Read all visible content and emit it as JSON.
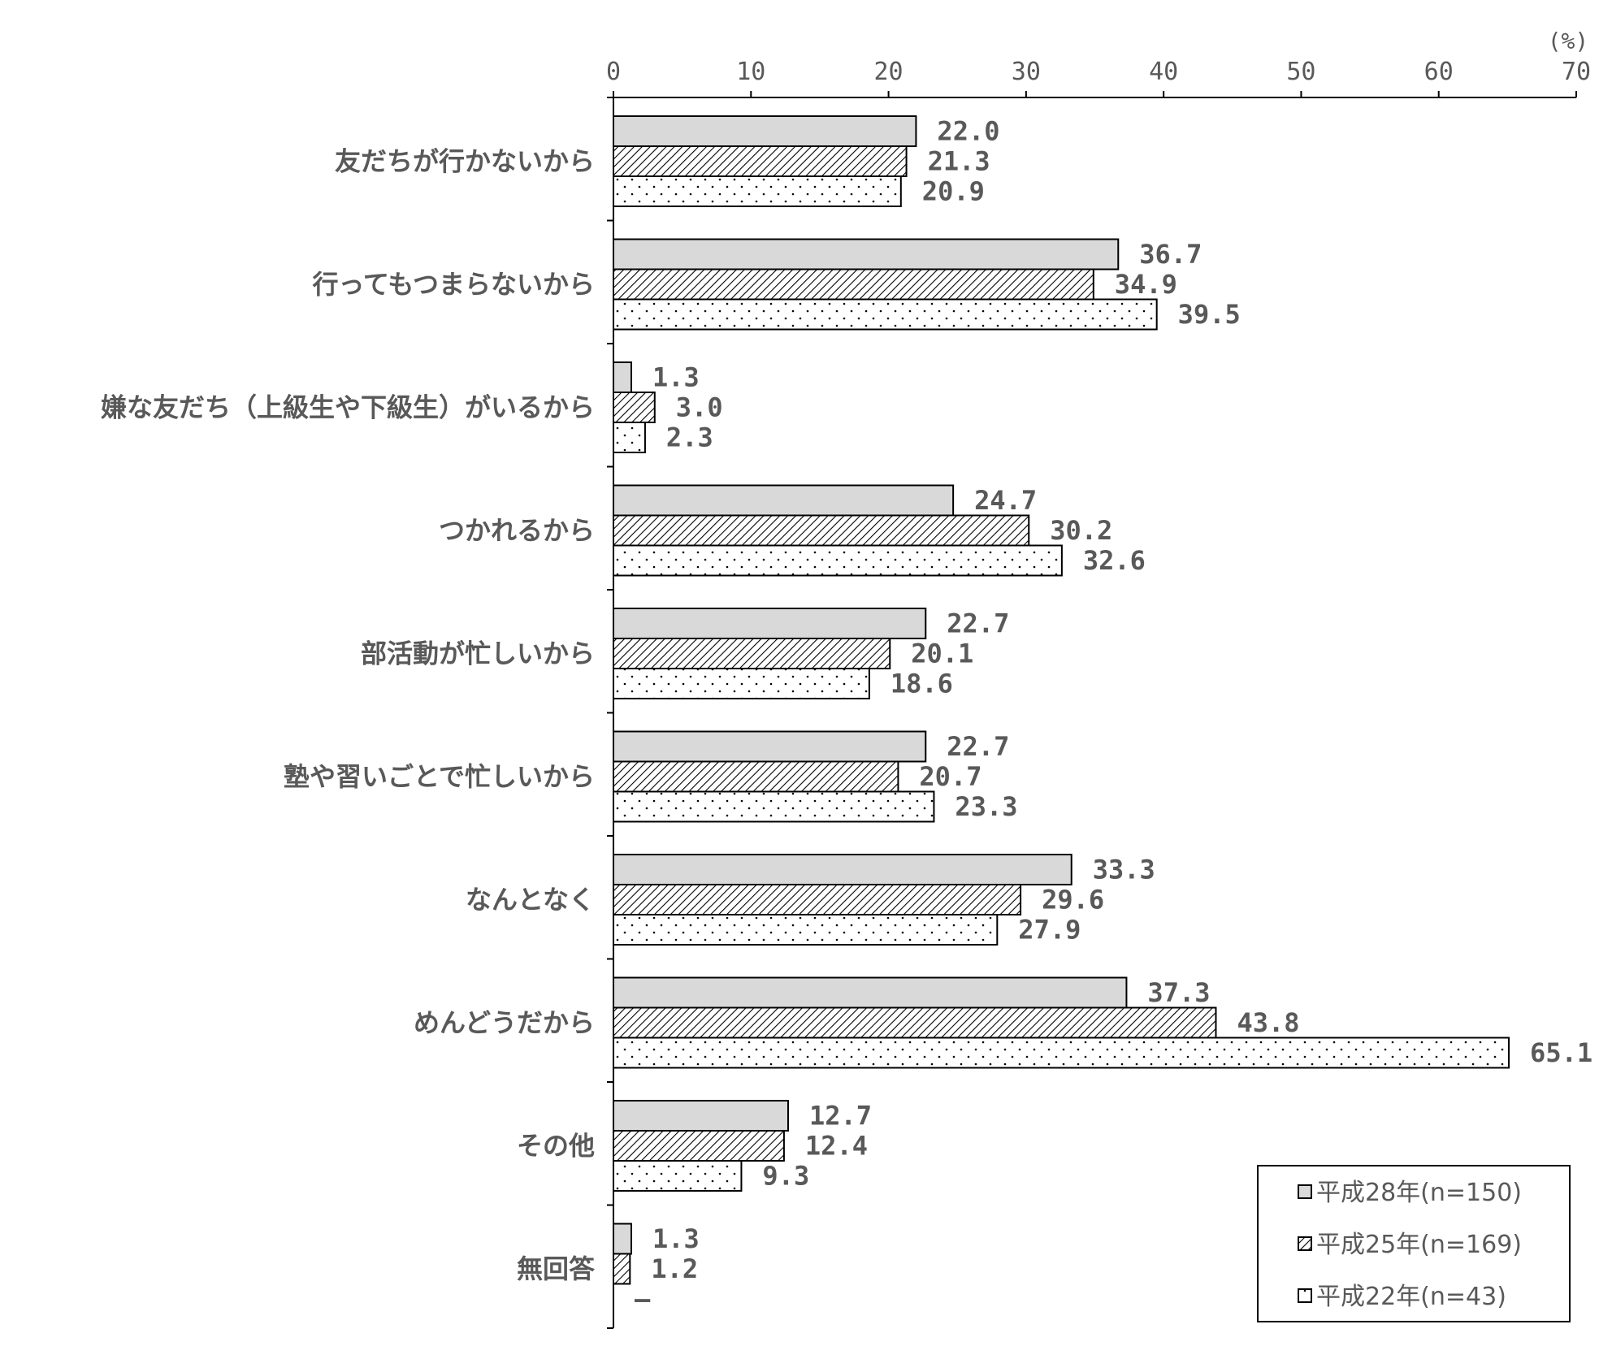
{
  "chart_data": {
    "type": "bar",
    "orientation": "horizontal",
    "unit_label": "(%)",
    "xlim": [
      0,
      70
    ],
    "x_ticks": [
      "0",
      "10",
      "20",
      "30",
      "40",
      "50",
      "60",
      "70"
    ],
    "categories": [
      "友だちが行かないから",
      "行ってもつまらないから",
      "嫌な友だち（上級生や下級生）がいるから",
      "つかれるから",
      "部活動が忙しいから",
      "塾や習いごとで忙しいから",
      "なんとなく",
      "めんどうだから",
      "その他",
      "無回答"
    ],
    "series": [
      {
        "name": "平成28年(n=150)",
        "pattern": "solid",
        "color": "#d9d9d9",
        "values": [
          22.0,
          36.7,
          1.3,
          24.7,
          22.7,
          22.7,
          33.3,
          37.3,
          12.7,
          1.3
        ],
        "labels": [
          "22.0",
          "36.7",
          "1.3",
          "24.7",
          "22.7",
          "22.7",
          "33.3",
          "37.3",
          "12.7",
          "1.3"
        ]
      },
      {
        "name": "平成25年(n=169)",
        "pattern": "diagonal-hatch",
        "color": "#000000",
        "values": [
          21.3,
          34.9,
          3.0,
          30.2,
          20.1,
          20.7,
          29.6,
          43.8,
          12.4,
          1.2
        ],
        "labels": [
          "21.3",
          "34.9",
          "3.0",
          "30.2",
          "20.1",
          "20.7",
          "29.6",
          "43.8",
          "12.4",
          "1.2"
        ]
      },
      {
        "name": "平成22年(n=43)",
        "pattern": "dots",
        "color": "#ffffff",
        "values": [
          20.9,
          39.5,
          2.3,
          32.6,
          18.6,
          23.3,
          27.9,
          65.1,
          9.3,
          null
        ],
        "labels": [
          "20.9",
          "39.5",
          "2.3",
          "32.6",
          "18.6",
          "23.3",
          "27.9",
          "65.1",
          "9.3",
          "—"
        ]
      }
    ],
    "legend_position": "bottom-right",
    "grid": false
  }
}
